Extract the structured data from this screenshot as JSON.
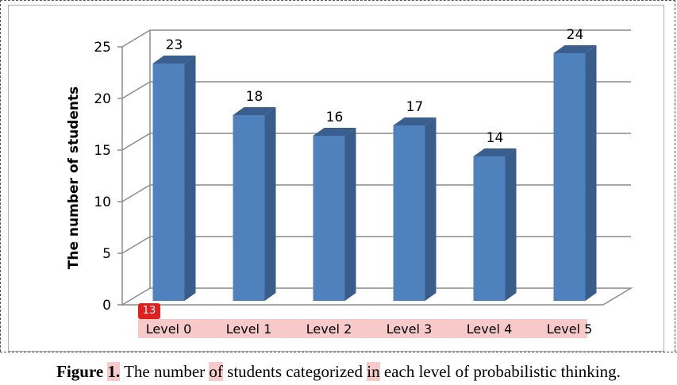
{
  "chart_data": {
    "type": "bar",
    "title": "",
    "xlabel": "",
    "ylabel": "The number of students",
    "categories": [
      "Level 0",
      "Level 1",
      "Level 2",
      "Level 3",
      "Level 4",
      "Level 5"
    ],
    "values": [
      23,
      18,
      16,
      17,
      14,
      24
    ],
    "yticks": [
      0,
      5,
      10,
      15,
      20,
      25
    ],
    "ylim": [
      0,
      25
    ],
    "grid": true,
    "style": "3d-column",
    "bar_color": "#4f81bd",
    "bar_side_color": "#385d8a",
    "bar_top_color": "#3a5f8f",
    "category_highlight_color": "#f7c9c9"
  },
  "badge": "13",
  "caption": {
    "figure_label": "Figure",
    "figure_number": "1.",
    "text_1": " The number ",
    "hl_1": "of",
    "text_2": " students categorized ",
    "hl_2": "in",
    "text_3": " each level of probabilistic thinking."
  }
}
